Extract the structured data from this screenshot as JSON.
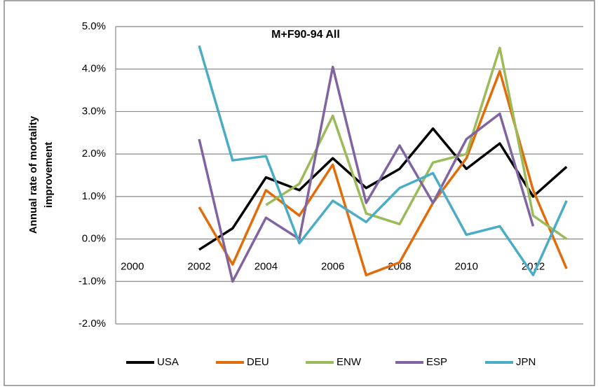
{
  "chart_data": {
    "type": "line",
    "title": "M+F90-94 All",
    "y_label": [
      "Annual rate of mortality",
      "improvement"
    ],
    "categories": [
      "2000",
      null,
      "2002",
      null,
      "2004",
      null,
      "2006",
      null,
      "2008",
      null,
      "2010",
      null,
      "2012",
      null
    ],
    "ylim": [
      -2,
      5
    ],
    "yticks": [
      {
        "value": -2,
        "label": "-2.0%"
      },
      {
        "value": -1,
        "label": "-1.0%"
      },
      {
        "value": 0,
        "label": "0.0%"
      },
      {
        "value": 1,
        "label": "1.0%"
      },
      {
        "value": 2,
        "label": "2.0%"
      },
      {
        "value": 3,
        "label": "3.0%"
      },
      {
        "value": 4,
        "label": "4.0%"
      },
      {
        "value": 5,
        "label": "5.0%"
      }
    ],
    "grid": true,
    "legend": "bottom",
    "series": [
      {
        "name": "USA",
        "color": "#000000",
        "values": [
          null,
          null,
          -0.25,
          0.25,
          1.45,
          1.15,
          1.9,
          1.2,
          1.65,
          2.6,
          1.65,
          2.25,
          1.0,
          1.7
        ]
      },
      {
        "name": "DEU",
        "color": "#e36c0a",
        "values": [
          null,
          null,
          0.75,
          -0.6,
          1.15,
          0.55,
          1.75,
          -0.85,
          -0.55,
          0.85,
          1.9,
          3.95,
          1.15,
          -0.7
        ]
      },
      {
        "name": "ENW",
        "color": "#9bbb59",
        "values": [
          null,
          null,
          null,
          null,
          0.8,
          1.3,
          2.9,
          0.6,
          0.35,
          1.8,
          2.0,
          4.5,
          0.55,
          0.0
        ]
      },
      {
        "name": "ESP",
        "color": "#8064a2",
        "values": [
          null,
          null,
          2.35,
          -1.0,
          0.5,
          0.0,
          4.05,
          0.85,
          2.2,
          0.85,
          2.35,
          2.95,
          0.3,
          null
        ]
      },
      {
        "name": "JPN",
        "color": "#4bacc6",
        "values": [
          null,
          null,
          4.55,
          1.85,
          1.95,
          -0.1,
          0.9,
          0.4,
          1.2,
          1.55,
          0.1,
          0.3,
          -0.85,
          0.9
        ]
      }
    ]
  }
}
